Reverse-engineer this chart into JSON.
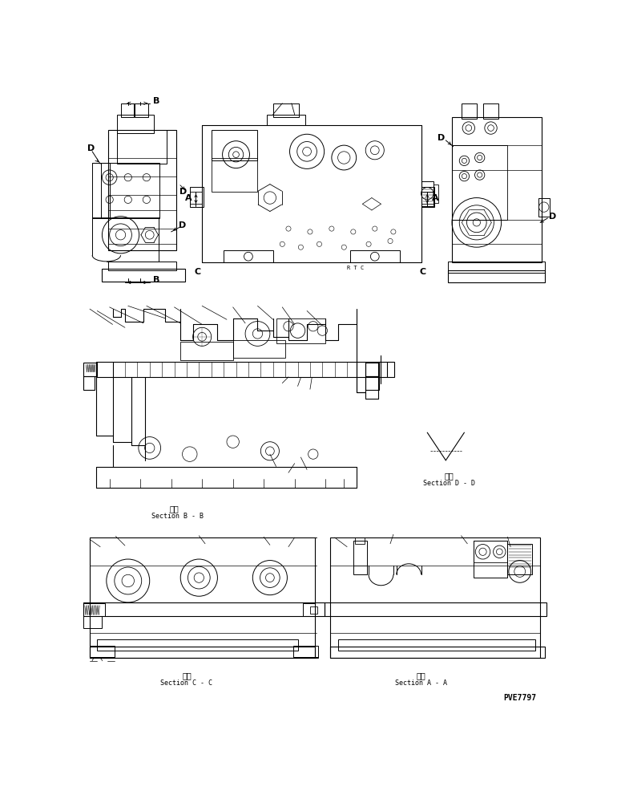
{
  "bg_color": "#ffffff",
  "line_color": "#000000",
  "fig_width": 7.7,
  "fig_height": 9.96,
  "dpi": 100,
  "labels": {
    "section_bb_kanji": "断面",
    "section_bb": "Section B - B",
    "section_cc_kanji": "断面",
    "section_cc": "Section C - C",
    "section_aa_kanji": "断面",
    "section_aa": "Section A - A",
    "section_dd_kanji": "断面",
    "section_dd": "Section D - D",
    "part_number": "PVE7797",
    "A": "A",
    "B": "B",
    "C": "C",
    "D": "D"
  },
  "font_sizes": {
    "section_label": 6,
    "kanji": 7,
    "part_number": 7,
    "dim_letter": 8
  }
}
